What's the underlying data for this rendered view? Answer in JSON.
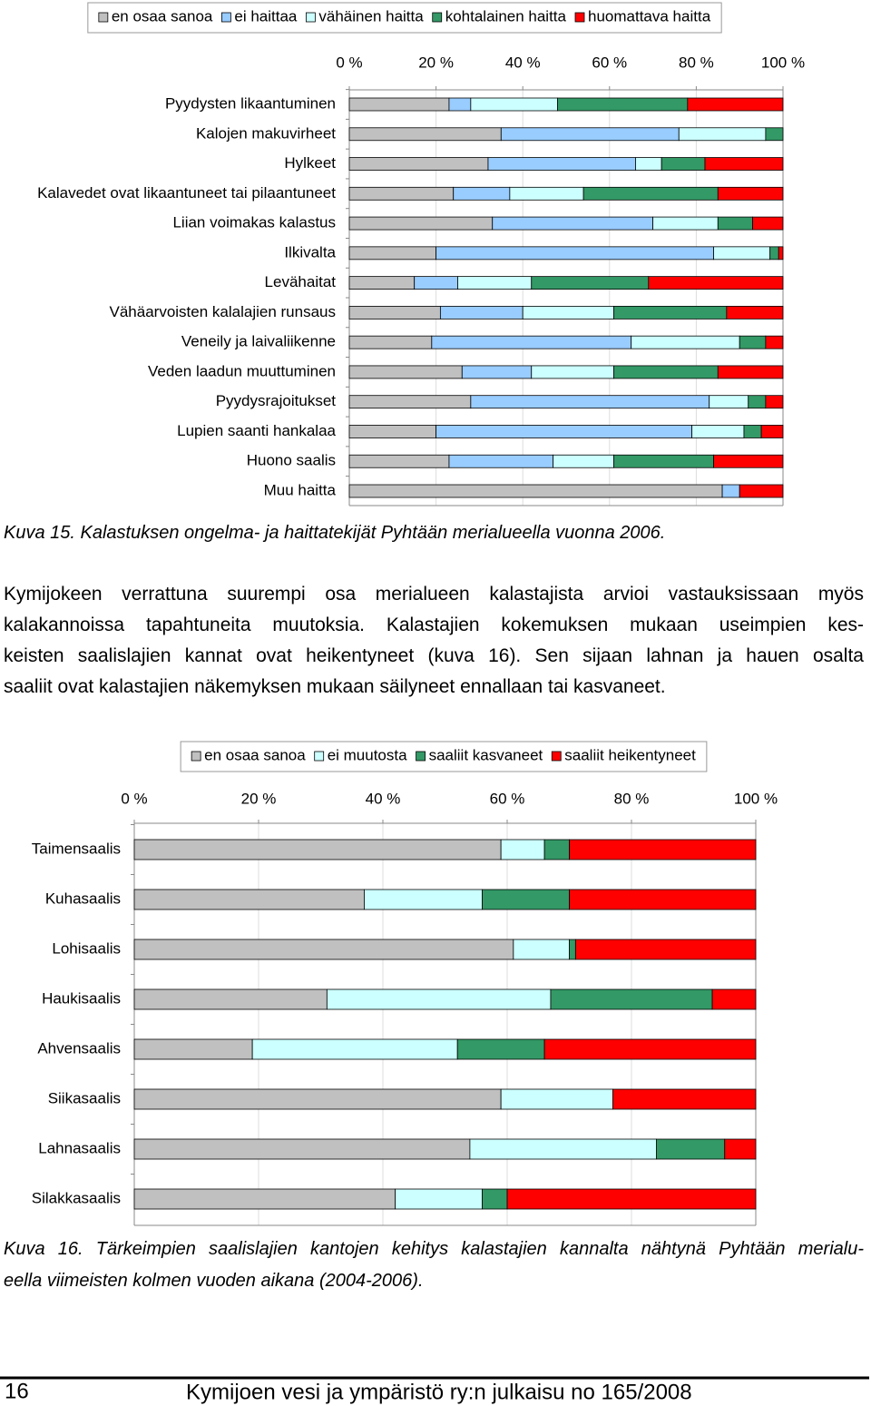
{
  "chart_data": [
    {
      "type": "bar",
      "orientation": "horizontal",
      "stacked": true,
      "legend": "top",
      "grid": true,
      "categories": [
        "Pyydysten likaantuminen",
        "Kalojen makuvirheet",
        "Hylkeet",
        "Kalavedet ovat likaantuneet tai pilaantuneet",
        "Liian voimakas kalastus",
        "Ilkivalta",
        "Levähaitat",
        "Vähäarvoisten kalalajien runsaus",
        "Veneily ja laivaliikenne",
        "Veden laadun muuttuminen",
        "Pyydysrajoitukset",
        "Lupien saanti hankalaa",
        "Huono saalis",
        "Muu haitta"
      ],
      "series": [
        {
          "name": "en osaa sanoa",
          "color": "#c0c0c0",
          "values": [
            23,
            35,
            32,
            24,
            33,
            20,
            15,
            21,
            19,
            26,
            28,
            20,
            23,
            86
          ]
        },
        {
          "name": "ei haittaa",
          "color": "#99ccff",
          "values": [
            5,
            41,
            34,
            13,
            37,
            64,
            10,
            19,
            46,
            16,
            55,
            59,
            24,
            4
          ]
        },
        {
          "name": "vähäinen haitta",
          "color": "#ccffff",
          "values": [
            20,
            20,
            6,
            17,
            15,
            13,
            17,
            21,
            25,
            19,
            9,
            12,
            14,
            0
          ]
        },
        {
          "name": "kohtalainen haitta",
          "color": "#339966",
          "values": [
            30,
            4,
            10,
            31,
            8,
            2,
            27,
            26,
            6,
            24,
            4,
            4,
            23,
            0
          ]
        },
        {
          "name": "huomattava haitta",
          "color": "#ff0000",
          "values": [
            22,
            0,
            18,
            15,
            7,
            1,
            31,
            13,
            4,
            15,
            4,
            5,
            16,
            10
          ]
        }
      ],
      "xlim": [
        0,
        100
      ],
      "xticks": [
        {
          "value": 0,
          "label": "0 %"
        },
        {
          "value": 20,
          "label": "20 %"
        },
        {
          "value": 40,
          "label": "40 %"
        },
        {
          "value": 60,
          "label": "60 %"
        },
        {
          "value": 80,
          "label": "80 %"
        },
        {
          "value": 100,
          "label": "100 %"
        }
      ]
    },
    {
      "type": "bar",
      "orientation": "horizontal",
      "stacked": true,
      "legend": "top",
      "grid": true,
      "categories": [
        "Taimensaalis",
        "Kuhasaalis",
        "Lohisaalis",
        "Haukisaalis",
        "Ahvensaalis",
        "Siikasaalis",
        "Lahnasaalis",
        "Silakkasaalis"
      ],
      "series": [
        {
          "name": "en osaa sanoa",
          "color": "#c0c0c0",
          "values": [
            59,
            37,
            61,
            31,
            19,
            59,
            54,
            42
          ]
        },
        {
          "name": "ei muutosta",
          "color": "#ccffff",
          "values": [
            7,
            19,
            9,
            36,
            33,
            18,
            30,
            14
          ]
        },
        {
          "name": "saaliit kasvaneet",
          "color": "#339966",
          "values": [
            4,
            14,
            1,
            26,
            14,
            0,
            11,
            4
          ]
        },
        {
          "name": "saaliit heikentyneet",
          "color": "#ff0000",
          "values": [
            30,
            30,
            29,
            7,
            34,
            23,
            5,
            40
          ]
        }
      ],
      "xlim": [
        0,
        100
      ],
      "xticks": [
        {
          "value": 0,
          "label": "0 %"
        },
        {
          "value": 20,
          "label": "20 %"
        },
        {
          "value": 40,
          "label": "40 %"
        },
        {
          "value": 60,
          "label": "60 %"
        },
        {
          "value": 80,
          "label": "80 %"
        },
        {
          "value": 100,
          "label": "100 %"
        }
      ]
    }
  ],
  "caption1": "Kuva 15. Kalastuksen ongelma- ja haittatekijät Pyhtään merialueella vuonna 2006.",
  "paragraph": [
    "Kymijokeen verrattuna suurempi osa merialueen kalastajista arvioi vastauksissaan myös",
    "kalakannoissa tapahtuneita muutoksia. Kalastajien kokemuksen mukaan useimpien kes-",
    "keisten saalislajien kannat ovat heikentyneet (kuva 16). Sen sijaan lahnan ja hauen osalta",
    "saaliit ovat kalastajien näkemyksen mukaan säilyneet ennallaan tai kasvaneet."
  ],
  "caption2": [
    "Kuva 16. Tärkeimpien saalislajien kantojen kehitys kalastajien kannalta nähtynä Pyhtään merialu-",
    "eella viimeisten kolmen vuoden aikana (2004-2006)."
  ],
  "footer": {
    "page": "16",
    "title": "Kymijoen vesi ja ympäristö ry:n julkaisu no 165/2008"
  }
}
